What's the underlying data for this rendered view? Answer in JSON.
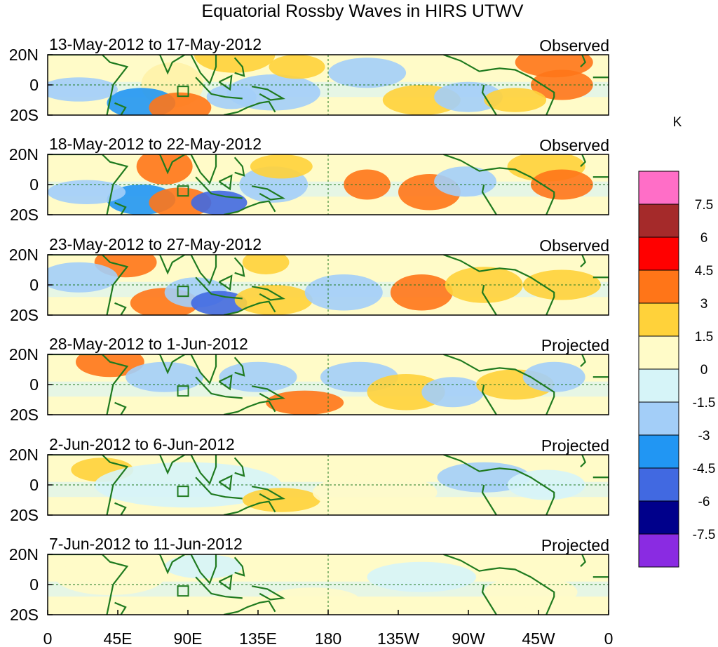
{
  "title": "Equatorial Rossby Waves in HIRS UTWV",
  "panels": [
    {
      "date_range": "13-May-2012 to 17-May-2012",
      "status": "Observed"
    },
    {
      "date_range": "18-May-2012 to 22-May-2012",
      "status": "Observed"
    },
    {
      "date_range": "23-May-2012 to 27-May-2012",
      "status": "Observed"
    },
    {
      "date_range": "28-May-2012 to 1-Jun-2012",
      "status": "Projected"
    },
    {
      "date_range": "2-Jun-2012 to 6-Jun-2012",
      "status": "Projected"
    },
    {
      "date_range": "7-Jun-2012 to 11-Jun-2012",
      "status": "Projected"
    }
  ],
  "lat_labels": [
    "20N",
    "0",
    "20S"
  ],
  "lon_labels": [
    "0",
    "45E",
    "90E",
    "135E",
    "180",
    "135W",
    "90W",
    "45W",
    "0"
  ],
  "colorbar": {
    "unit": "K",
    "levels": [
      "7.5",
      "6",
      "4.5",
      "3",
      "1.5",
      "0",
      "-1.5",
      "-3",
      "-4.5",
      "-6",
      "-7.5"
    ],
    "colors": [
      "#ff6ec7",
      "#a52a2a",
      "#ff0000",
      "#ff7518",
      "#ffd23a",
      "#fffbc8",
      "#d6f4f8",
      "#a3cef8",
      "#2196f3",
      "#4169e1",
      "#00008b",
      "#8a2be2"
    ]
  },
  "anomalies": [
    [
      [
        80,
        0,
        20,
        15,
        "#fff2a8"
      ],
      [
        120,
        20,
        26,
        12,
        "#ffd23a"
      ],
      [
        145,
        -5,
        30,
        12,
        "#a3cef8"
      ],
      [
        60,
        -12,
        22,
        10,
        "#2196f3"
      ],
      [
        85,
        -15,
        20,
        10,
        "#ff7518"
      ],
      [
        118,
        -8,
        16,
        8,
        "#a3cef8"
      ],
      [
        160,
        12,
        18,
        8,
        "#ffd23a"
      ],
      [
        205,
        8,
        25,
        10,
        "#a3cef8"
      ],
      [
        240,
        -10,
        25,
        10,
        "#ffd23a"
      ],
      [
        270,
        -8,
        22,
        10,
        "#a3cef8"
      ],
      [
        325,
        15,
        25,
        10,
        "#ff7518"
      ],
      [
        330,
        0,
        20,
        10,
        "#ff7518"
      ],
      [
        300,
        -10,
        20,
        8,
        "#ffd23a"
      ],
      [
        20,
        -3,
        25,
        8,
        "#a3cef8"
      ]
    ],
    [
      [
        75,
        12,
        18,
        12,
        "#ff7518"
      ],
      [
        60,
        -10,
        22,
        10,
        "#2196f3"
      ],
      [
        85,
        -12,
        20,
        10,
        "#ff7518"
      ],
      [
        110,
        -12,
        18,
        8,
        "#4169e1"
      ],
      [
        145,
        0,
        22,
        12,
        "#a3cef8"
      ],
      [
        150,
        12,
        20,
        8,
        "#ffd23a"
      ],
      [
        205,
        0,
        15,
        10,
        "#ff7518"
      ],
      [
        245,
        -5,
        20,
        12,
        "#ff7518"
      ],
      [
        268,
        2,
        20,
        10,
        "#a3cef8"
      ],
      [
        320,
        12,
        25,
        10,
        "#ffd23a"
      ],
      [
        330,
        0,
        20,
        10,
        "#ff7518"
      ],
      [
        25,
        -5,
        25,
        8,
        "#a3cef8"
      ]
    ],
    [
      [
        50,
        15,
        20,
        10,
        "#ff7518"
      ],
      [
        75,
        -12,
        22,
        10,
        "#ff7518"
      ],
      [
        95,
        -5,
        20,
        10,
        "#a3cef8"
      ],
      [
        110,
        -12,
        18,
        8,
        "#4169e1"
      ],
      [
        145,
        -10,
        25,
        10,
        "#ffd23a"
      ],
      [
        140,
        15,
        15,
        8,
        "#ffd23a"
      ],
      [
        190,
        -5,
        25,
        12,
        "#a3cef8"
      ],
      [
        240,
        -5,
        20,
        12,
        "#ff7518"
      ],
      [
        280,
        0,
        25,
        12,
        "#ffd23a"
      ],
      [
        330,
        0,
        25,
        10,
        "#ffd23a"
      ],
      [
        20,
        5,
        25,
        10,
        "#a3cef8"
      ]
    ],
    [
      [
        40,
        15,
        22,
        10,
        "#ff7518"
      ],
      [
        75,
        5,
        25,
        10,
        "#a3cef8"
      ],
      [
        135,
        5,
        25,
        10,
        "#a3cef8"
      ],
      [
        165,
        -12,
        25,
        8,
        "#ff7518"
      ],
      [
        200,
        5,
        25,
        10,
        "#a3cef8"
      ],
      [
        230,
        -5,
        25,
        12,
        "#ffd23a"
      ],
      [
        260,
        -5,
        20,
        10,
        "#a3cef8"
      ],
      [
        300,
        0,
        25,
        10,
        "#ffd23a"
      ],
      [
        325,
        5,
        20,
        10,
        "#a3cef8"
      ]
    ],
    [
      [
        35,
        10,
        20,
        8,
        "#ffd23a"
      ],
      [
        90,
        0,
        60,
        15,
        "#d6f4f8"
      ],
      [
        150,
        -10,
        25,
        8,
        "#ffd23a"
      ],
      [
        210,
        -5,
        40,
        12,
        "#fffbc8"
      ],
      [
        280,
        5,
        30,
        10,
        "#a3cef8"
      ],
      [
        320,
        0,
        25,
        10,
        "#d6f4f8"
      ]
    ],
    [
      [
        40,
        5,
        35,
        12,
        "#fffbc8"
      ],
      [
        100,
        12,
        25,
        8,
        "#d6f4f8"
      ],
      [
        170,
        -10,
        30,
        8,
        "#fffbc8"
      ],
      [
        240,
        5,
        35,
        10,
        "#d6f4f8"
      ],
      [
        310,
        -5,
        30,
        10,
        "#fffbc8"
      ]
    ]
  ]
}
